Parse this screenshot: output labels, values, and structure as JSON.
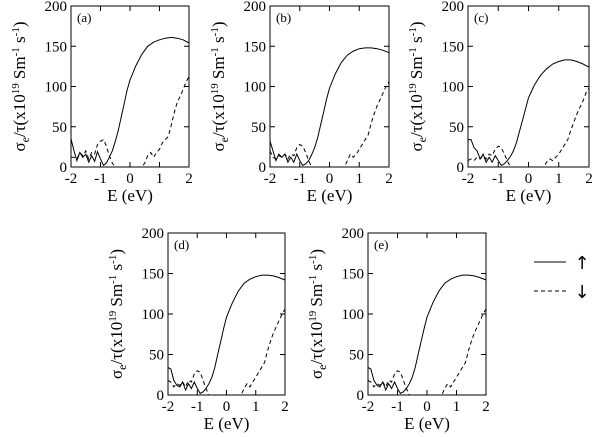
{
  "chart_data": [
    {
      "type": "line",
      "panel_label": "(a)",
      "xlabel": "E (eV)",
      "ylabel": "σe/τ(x10¹⁹ Sm⁻¹s⁻¹)",
      "xlim": [
        -2,
        2
      ],
      "ylim": [
        0,
        200
      ],
      "xticks": [
        -2,
        -1,
        0,
        1,
        2
      ],
      "yticks": [
        0,
        50,
        100,
        150,
        200
      ],
      "series": [
        {
          "style": "solid",
          "x": [
            -2.0,
            -1.9,
            -1.8,
            -1.7,
            -1.6,
            -1.5,
            -1.4,
            -1.3,
            -1.2,
            -1.1,
            -1.0,
            -0.9,
            -0.8,
            -0.7,
            -0.6,
            -0.5,
            -0.4,
            -0.3,
            -0.2,
            -0.1,
            0.0,
            0.2,
            0.4,
            0.6,
            0.8,
            1.0,
            1.2,
            1.4,
            1.6,
            1.8,
            2.0
          ],
          "values": [
            35,
            20,
            8,
            18,
            12,
            16,
            6,
            14,
            7,
            19,
            10,
            2,
            5,
            12,
            20,
            32,
            45,
            62,
            78,
            95,
            108,
            126,
            140,
            150,
            155,
            158,
            160,
            161,
            160,
            158,
            154
          ]
        },
        {
          "style": "dashed",
          "x": [
            -2.0,
            -1.9,
            -1.8,
            -1.7,
            -1.6,
            -1.5,
            -1.4,
            -1.3,
            -1.2,
            -1.1,
            -1.0,
            -0.9,
            -0.8,
            -0.7,
            -0.6,
            -0.5,
            0.4,
            0.5,
            0.6,
            0.7,
            0.8,
            0.9,
            1.0,
            1.1,
            1.2,
            1.3,
            1.4,
            1.5,
            1.6,
            1.7,
            1.8,
            1.9,
            2.0
          ],
          "values": [
            12,
            12,
            10,
            18,
            14,
            20,
            10,
            18,
            16,
            28,
            32,
            34,
            26,
            14,
            5,
            0,
            0,
            5,
            14,
            18,
            12,
            18,
            22,
            30,
            34,
            38,
            52,
            68,
            80,
            88,
            96,
            106,
            112
          ]
        }
      ]
    },
    {
      "type": "line",
      "panel_label": "(b)",
      "xlabel": "E (eV)",
      "ylabel": "σe/τ(x10¹⁹ Sm⁻¹s⁻¹)",
      "xlim": [
        -2,
        2
      ],
      "ylim": [
        0,
        200
      ],
      "xticks": [
        -2,
        -1,
        0,
        1,
        2
      ],
      "yticks": [
        0,
        50,
        100,
        150,
        200
      ],
      "series": [
        {
          "style": "solid",
          "x": [
            -2.0,
            -1.9,
            -1.8,
            -1.7,
            -1.6,
            -1.5,
            -1.4,
            -1.3,
            -1.2,
            -1.1,
            -1.0,
            -0.9,
            -0.8,
            -0.7,
            -0.6,
            -0.5,
            -0.4,
            -0.3,
            -0.2,
            -0.1,
            0.0,
            0.2,
            0.4,
            0.6,
            0.8,
            1.0,
            1.2,
            1.4,
            1.6,
            1.8,
            2.0
          ],
          "values": [
            32,
            20,
            8,
            16,
            12,
            16,
            6,
            12,
            6,
            16,
            8,
            2,
            4,
            8,
            15,
            24,
            36,
            52,
            68,
            84,
            98,
            116,
            130,
            139,
            144,
            147,
            148,
            148,
            147,
            145,
            142
          ]
        },
        {
          "style": "dashed",
          "x": [
            -2.0,
            -1.9,
            -1.8,
            -1.7,
            -1.6,
            -1.5,
            -1.4,
            -1.3,
            -1.2,
            -1.1,
            -1.0,
            -0.9,
            -0.8,
            -0.7,
            -0.6,
            0.5,
            0.6,
            0.7,
            0.8,
            0.9,
            1.0,
            1.1,
            1.2,
            1.3,
            1.4,
            1.5,
            1.6,
            1.7,
            1.8,
            1.9,
            2.0
          ],
          "values": [
            20,
            12,
            10,
            14,
            12,
            16,
            10,
            16,
            14,
            24,
            28,
            26,
            18,
            8,
            0,
            0,
            8,
            16,
            12,
            16,
            22,
            28,
            34,
            40,
            54,
            66,
            76,
            84,
            92,
            100,
            106
          ]
        }
      ]
    },
    {
      "type": "line",
      "panel_label": "(c)",
      "xlabel": "E (eV)",
      "ylabel": "σe/τ(x10¹⁹ Sm⁻¹s⁻¹)",
      "xlim": [
        -2,
        2
      ],
      "ylim": [
        0,
        200
      ],
      "xticks": [
        -2,
        -1,
        0,
        1,
        2
      ],
      "yticks": [
        0,
        50,
        100,
        150,
        200
      ],
      "series": [
        {
          "style": "solid",
          "x": [
            -2.0,
            -1.9,
            -1.8,
            -1.7,
            -1.6,
            -1.5,
            -1.4,
            -1.3,
            -1.2,
            -1.1,
            -1.0,
            -0.9,
            -0.8,
            -0.7,
            -0.6,
            -0.5,
            -0.4,
            -0.3,
            -0.2,
            -0.1,
            0.0,
            0.2,
            0.4,
            0.6,
            0.8,
            1.0,
            1.2,
            1.4,
            1.6,
            1.8,
            2.0
          ],
          "values": [
            34,
            34,
            24,
            20,
            10,
            16,
            6,
            12,
            6,
            14,
            8,
            2,
            4,
            8,
            13,
            20,
            30,
            44,
            58,
            72,
            86,
            102,
            114,
            122,
            128,
            131,
            133,
            133,
            131,
            128,
            124
          ]
        },
        {
          "style": "dashed",
          "x": [
            -2.0,
            -1.9,
            -1.8,
            -1.7,
            -1.6,
            -1.5,
            -1.4,
            -1.3,
            -1.2,
            -1.1,
            -1.0,
            -0.9,
            -0.8,
            -0.7,
            -0.6,
            0.5,
            0.6,
            0.7,
            0.8,
            0.9,
            1.0,
            1.1,
            1.2,
            1.3,
            1.4,
            1.5,
            1.6,
            1.7,
            1.8,
            1.9,
            2.0
          ],
          "values": [
            8,
            10,
            8,
            12,
            10,
            14,
            10,
            16,
            14,
            22,
            26,
            24,
            16,
            8,
            0,
            0,
            6,
            10,
            8,
            12,
            16,
            22,
            28,
            34,
            46,
            56,
            66,
            74,
            82,
            92,
            98
          ]
        }
      ]
    },
    {
      "type": "line",
      "panel_label": "(d)",
      "xlabel": "E (eV)",
      "ylabel": "σe/τ(x10¹⁹ Sm⁻¹s⁻¹)",
      "xlim": [
        -2,
        2
      ],
      "ylim": [
        0,
        200
      ],
      "xticks": [
        -2,
        -1,
        0,
        1,
        2
      ],
      "yticks": [
        0,
        50,
        100,
        150,
        200
      ],
      "series": [
        {
          "style": "solid",
          "x": [
            -2.0,
            -1.9,
            -1.8,
            -1.7,
            -1.6,
            -1.5,
            -1.4,
            -1.3,
            -1.2,
            -1.1,
            -1.0,
            -0.9,
            -0.8,
            -0.7,
            -0.6,
            -0.5,
            -0.4,
            -0.3,
            -0.2,
            -0.1,
            0.0,
            0.2,
            0.4,
            0.6,
            0.8,
            1.0,
            1.2,
            1.4,
            1.6,
            1.8,
            2.0
          ],
          "values": [
            34,
            32,
            18,
            12,
            10,
            16,
            6,
            14,
            8,
            16,
            8,
            2,
            4,
            8,
            14,
            22,
            34,
            50,
            66,
            82,
            96,
            114,
            128,
            138,
            143,
            146,
            148,
            148,
            147,
            145,
            142
          ]
        },
        {
          "style": "dashed",
          "x": [
            -2.0,
            -1.9,
            -1.8,
            -1.7,
            -1.6,
            -1.5,
            -1.4,
            -1.3,
            -1.2,
            -1.1,
            -1.0,
            -0.9,
            -0.8,
            -0.7,
            -0.6,
            0.5,
            0.6,
            0.7,
            0.8,
            0.9,
            1.0,
            1.1,
            1.2,
            1.3,
            1.4,
            1.5,
            1.6,
            1.7,
            1.8,
            1.9,
            2.0
          ],
          "values": [
            18,
            16,
            10,
            14,
            12,
            16,
            10,
            18,
            16,
            26,
            30,
            28,
            18,
            8,
            0,
            0,
            8,
            14,
            10,
            16,
            22,
            28,
            34,
            40,
            54,
            66,
            76,
            84,
            92,
            100,
            106
          ]
        }
      ]
    },
    {
      "type": "line",
      "panel_label": "(e)",
      "xlabel": "E (eV)",
      "ylabel": "σe/τ(x10¹⁹ Sm⁻¹s⁻¹)",
      "xlim": [
        -2,
        2
      ],
      "ylim": [
        0,
        200
      ],
      "xticks": [
        -2,
        -1,
        0,
        1,
        2
      ],
      "yticks": [
        0,
        50,
        100,
        150,
        200
      ],
      "series": [
        {
          "style": "solid",
          "x": [
            -2.0,
            -1.9,
            -1.8,
            -1.7,
            -1.6,
            -1.5,
            -1.4,
            -1.3,
            -1.2,
            -1.1,
            -1.0,
            -0.9,
            -0.8,
            -0.7,
            -0.6,
            -0.5,
            -0.4,
            -0.3,
            -0.2,
            -0.1,
            0.0,
            0.2,
            0.4,
            0.6,
            0.8,
            1.0,
            1.2,
            1.4,
            1.6,
            1.8,
            2.0
          ],
          "values": [
            34,
            32,
            18,
            12,
            10,
            16,
            6,
            14,
            8,
            16,
            8,
            2,
            4,
            8,
            14,
            22,
            34,
            50,
            66,
            82,
            96,
            114,
            128,
            138,
            143,
            146,
            148,
            148,
            147,
            145,
            142
          ]
        },
        {
          "style": "dashed",
          "x": [
            -2.0,
            -1.9,
            -1.8,
            -1.7,
            -1.6,
            -1.5,
            -1.4,
            -1.3,
            -1.2,
            -1.1,
            -1.0,
            -0.9,
            -0.8,
            -0.7,
            -0.6,
            0.5,
            0.6,
            0.7,
            0.8,
            0.9,
            1.0,
            1.1,
            1.2,
            1.3,
            1.4,
            1.5,
            1.6,
            1.7,
            1.8,
            1.9,
            2.0
          ],
          "values": [
            18,
            16,
            10,
            14,
            12,
            16,
            10,
            18,
            16,
            26,
            30,
            28,
            18,
            8,
            0,
            0,
            8,
            14,
            10,
            16,
            22,
            28,
            34,
            40,
            54,
            66,
            76,
            84,
            92,
            100,
            106
          ]
        }
      ]
    }
  ],
  "legend": {
    "placement": "right",
    "entries": [
      {
        "style": "solid",
        "symbol": "↑"
      },
      {
        "style": "dashed",
        "symbol": "↓"
      }
    ]
  }
}
